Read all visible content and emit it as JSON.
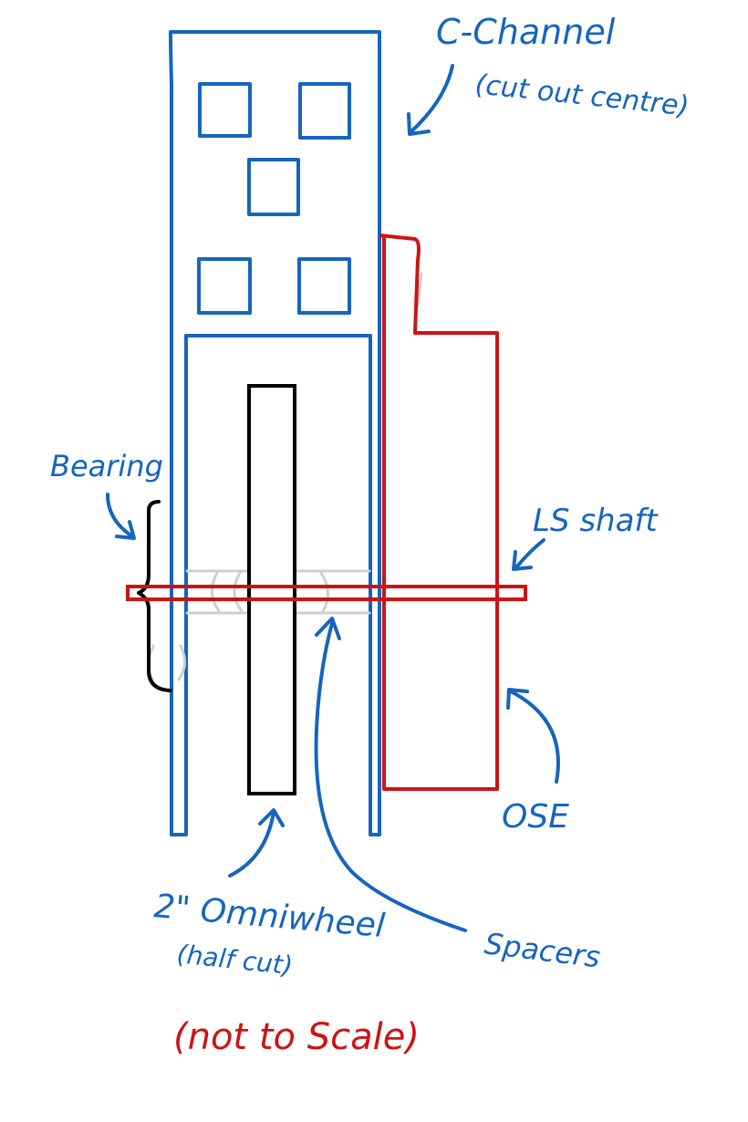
{
  "colors": {
    "blue": "#1565c0",
    "red": "#cc1414",
    "black": "#000000",
    "grey": "#cfcfcf"
  },
  "labels": {
    "c_channel_line1": "C-Channel",
    "c_channel_line2": "(cut out centre)",
    "bearing": "Bearing",
    "shaft": "LS shaft",
    "ose": "OSE",
    "omniwheel_line1": "2\" Omniwheel",
    "omniwheel_line2": "(half cut)",
    "spacers": "Spacers",
    "note": "(not to Scale)"
  }
}
